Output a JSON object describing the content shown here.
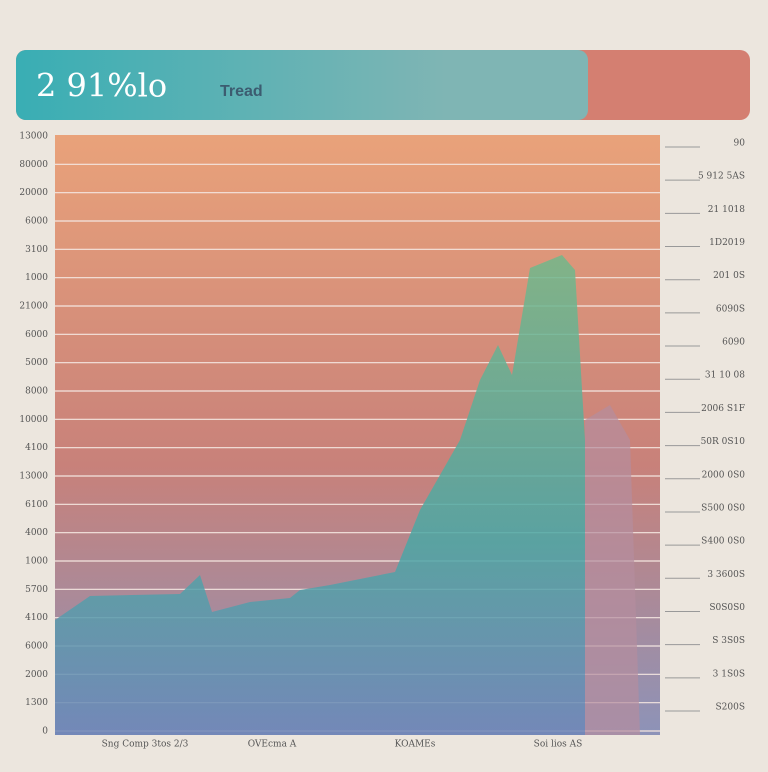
{
  "header": {
    "title": "2 91%lo",
    "subtitle": "Tread"
  },
  "left_labels": [
    "13000",
    "80000",
    "20000",
    "6000",
    "3100",
    "1000",
    "21000",
    "6000",
    "5000",
    "8000",
    "10000",
    "4100",
    "13000",
    "6100",
    "4000",
    "1000",
    "5700",
    "4100",
    "6000",
    "2000",
    "1300",
    "0"
  ],
  "right_labels": [
    "90",
    "5 912 5AS",
    "21 1018",
    "1D2019",
    "201 0S",
    "6090S",
    "6090",
    "31 10 08",
    "2006 S1F",
    "50R 0S10",
    "2000 0S0",
    "S500 0S0",
    "S400 0S0",
    "3 3600S",
    "S0S0S0",
    "S 3S0S",
    "3 1S0S",
    "S200S"
  ],
  "bottom_labels": [
    "Sng Comp 3tos 2/3",
    "OVEcma A",
    "KOAMEs",
    "Soi lios AS"
  ]
}
